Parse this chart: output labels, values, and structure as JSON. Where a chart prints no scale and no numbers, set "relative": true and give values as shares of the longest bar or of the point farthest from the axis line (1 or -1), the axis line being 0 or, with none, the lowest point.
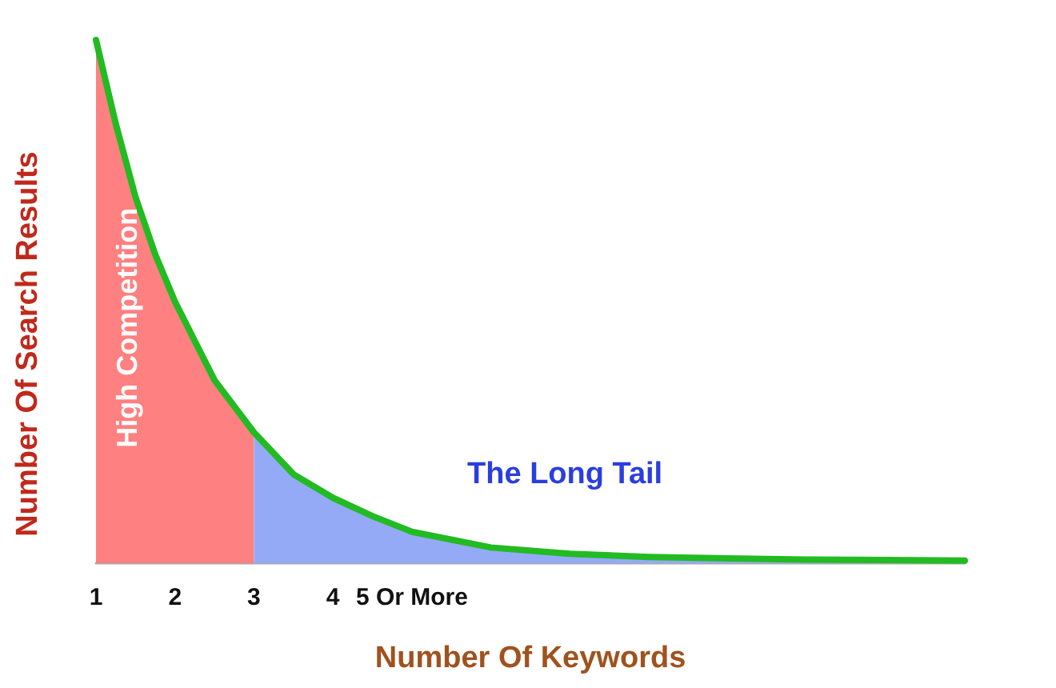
{
  "chart_data": {
    "type": "area",
    "relative": true,
    "xlabel": "Number Of Keywords",
    "ylabel": "Number Of Search Results",
    "xlim": [
      1,
      12
    ],
    "xticks": [
      1,
      2,
      3,
      4,
      {
        "value": 5,
        "label": "5 Or More"
      }
    ],
    "annotations": [
      "High Competition",
      "The Long Tail"
    ],
    "series": [
      {
        "color": "#ff8080",
        "x": [
          1,
          1.25,
          1.5,
          1.75,
          2,
          2.5,
          3
        ],
        "values": [
          1,
          0.84,
          0.7,
          0.59,
          0.5,
          0.35,
          0.25
        ]
      },
      {
        "color": "#94aaf7",
        "x": [
          3,
          3.5,
          4,
          4.5,
          5,
          6,
          7,
          8,
          9,
          10,
          11,
          12
        ],
        "values": [
          0.25,
          0.17,
          0.125,
          0.09,
          0.06,
          0.03,
          0.018,
          0.012,
          0.009,
          0.007,
          0.006,
          0.005
        ]
      },
      {
        "type": "line",
        "color": "#22bb22",
        "x": [
          1,
          1.25,
          1.5,
          1.75,
          2,
          2.5,
          3,
          3.5,
          4,
          4.5,
          5,
          6,
          7,
          8,
          9,
          10,
          11,
          12
        ],
        "values": [
          1,
          0.84,
          0.7,
          0.59,
          0.5,
          0.35,
          0.25,
          0.17,
          0.125,
          0.09,
          0.06,
          0.03,
          0.018,
          0.012,
          0.009,
          0.007,
          0.006,
          0.005
        ]
      }
    ]
  }
}
